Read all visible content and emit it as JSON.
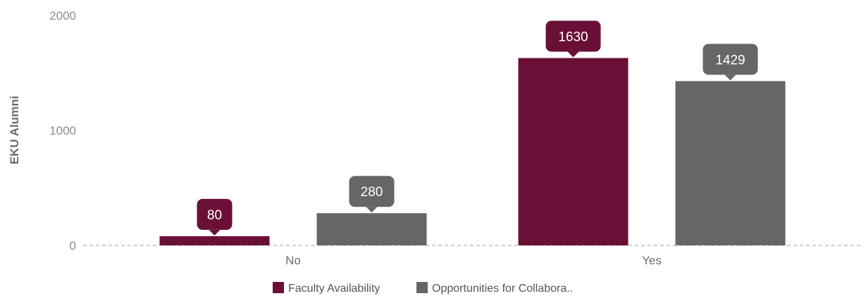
{
  "chart_data": {
    "type": "bar",
    "title": "",
    "ylabel": "EKU Alumni",
    "xlabel": "",
    "categories": [
      "No",
      "Yes"
    ],
    "ylim": [
      0,
      2000
    ],
    "yticks": [
      0,
      1000,
      2000
    ],
    "grid": false,
    "baseline_style": "dashed",
    "legend_position": "bottom",
    "data_labels": "callout-above",
    "series": [
      {
        "name": "Faculty Availability",
        "color": "#6a1037",
        "values": [
          80,
          1630
        ]
      },
      {
        "name": "Opportunities for Collabora..",
        "color": "#666666",
        "values": [
          280,
          1429
        ]
      }
    ]
  }
}
